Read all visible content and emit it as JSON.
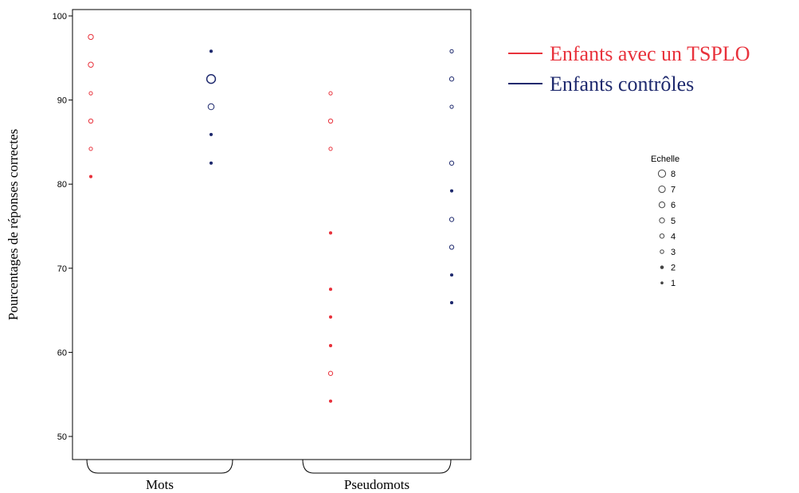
{
  "chart_data": {
    "type": "scatter",
    "ylabel": "Pourcentages de réponses correctes",
    "ylim": [
      48,
      100
    ],
    "yticks": [
      50,
      60,
      70,
      80,
      90,
      100
    ],
    "categories": [
      "Mots",
      "Pseudomots"
    ],
    "grid": false,
    "series": [
      {
        "name": "Enfants avec un TSPLO",
        "color": "#e8323c",
        "points": [
          {
            "category": "Mots",
            "y": 97.5,
            "size": 4
          },
          {
            "category": "Mots",
            "y": 94.2,
            "size": 4
          },
          {
            "category": "Mots",
            "y": 90.8,
            "size": 2
          },
          {
            "category": "Mots",
            "y": 87.5,
            "size": 3
          },
          {
            "category": "Mots",
            "y": 84.2,
            "size": 2
          },
          {
            "category": "Mots",
            "y": 80.9,
            "size": 1
          },
          {
            "category": "Pseudomots",
            "y": 90.8,
            "size": 2
          },
          {
            "category": "Pseudomots",
            "y": 87.5,
            "size": 3
          },
          {
            "category": "Pseudomots",
            "y": 84.2,
            "size": 2
          },
          {
            "category": "Pseudomots",
            "y": 74.2,
            "size": 1
          },
          {
            "category": "Pseudomots",
            "y": 67.5,
            "size": 1
          },
          {
            "category": "Pseudomots",
            "y": 64.2,
            "size": 1
          },
          {
            "category": "Pseudomots",
            "y": 60.8,
            "size": 1
          },
          {
            "category": "Pseudomots",
            "y": 57.5,
            "size": 3
          },
          {
            "category": "Pseudomots",
            "y": 54.2,
            "size": 1
          }
        ]
      },
      {
        "name": "Enfants contrôles",
        "color": "#1f2a6e",
        "points": [
          {
            "category": "Mots",
            "y": 95.8,
            "size": 1
          },
          {
            "category": "Mots",
            "y": 92.5,
            "size": 8
          },
          {
            "category": "Mots",
            "y": 89.2,
            "size": 5
          },
          {
            "category": "Mots",
            "y": 85.9,
            "size": 1
          },
          {
            "category": "Mots",
            "y": 82.5,
            "size": 1
          },
          {
            "category": "Pseudomots",
            "y": 95.8,
            "size": 2
          },
          {
            "category": "Pseudomots",
            "y": 92.5,
            "size": 3
          },
          {
            "category": "Pseudomots",
            "y": 89.2,
            "size": 2
          },
          {
            "category": "Pseudomots",
            "y": 82.5,
            "size": 3
          },
          {
            "category": "Pseudomots",
            "y": 79.2,
            "size": 1
          },
          {
            "category": "Pseudomots",
            "y": 75.8,
            "size": 3
          },
          {
            "category": "Pseudomots",
            "y": 72.5,
            "size": 3
          },
          {
            "category": "Pseudomots",
            "y": 69.2,
            "size": 1
          },
          {
            "category": "Pseudomots",
            "y": 65.9,
            "size": 1
          }
        ]
      }
    ],
    "size_legend": {
      "title": "Echelle",
      "items": [
        "8",
        "7",
        "6",
        "5",
        "4",
        "3",
        "2",
        "1"
      ]
    },
    "legend_placement": "top-right"
  }
}
